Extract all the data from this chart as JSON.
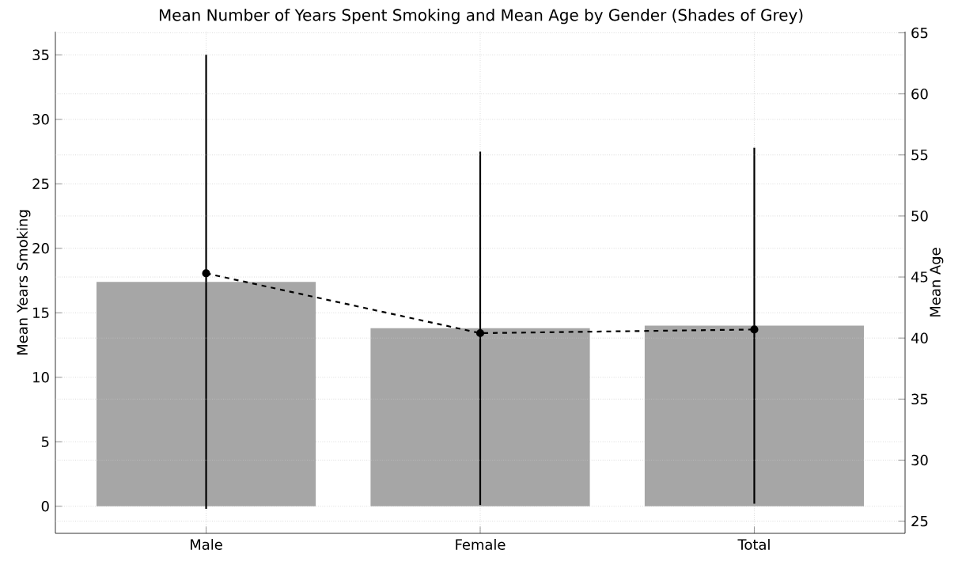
{
  "chart_data": {
    "type": "bar",
    "title": "Mean Number of Years Spent Smoking and Mean Age by Gender (Shades of Grey)",
    "ylabel": "Mean Years Smoking",
    "y2label": "Mean Age",
    "categories": [
      "Male",
      "Female",
      "Total"
    ],
    "series": [
      {
        "color": "#a6a6a6",
        "values": [
          17.4,
          13.8,
          14.0
        ],
        "errors": [
          [
            17.6,
            17.6
          ],
          [
            13.7,
            13.7
          ],
          [
            13.8,
            13.8
          ]
        ]
      },
      {
        "type": "line",
        "axis": "y2",
        "color": "#000000",
        "values": [
          45.3,
          40.4,
          40.7
        ],
        "marker": "circle",
        "line_style": "dashed"
      }
    ],
    "ylim": [
      -2.1,
      36.8
    ],
    "yticks": [
      0,
      5,
      10,
      15,
      20,
      25,
      30,
      35
    ],
    "y2lim": [
      24.0,
      65.1
    ],
    "y2ticks": [
      25,
      30,
      35,
      40,
      45,
      50,
      55,
      60,
      65
    ],
    "grid": true
  }
}
